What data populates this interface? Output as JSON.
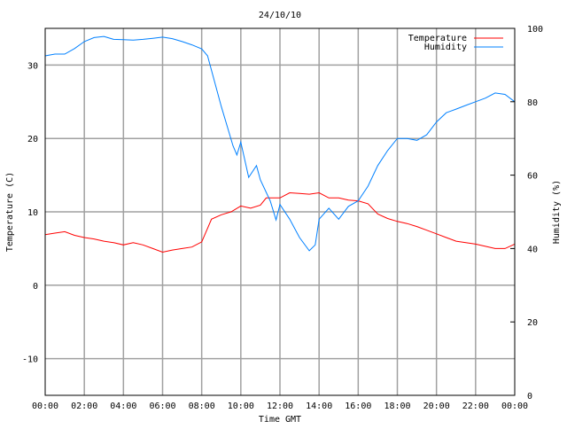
{
  "chart_data": {
    "type": "line",
    "title": "24/10/10",
    "xlabel": "Time GMT",
    "ylabel": "Temperature (C)",
    "y2label": "Humidity (%)",
    "xlim": [
      0,
      24
    ],
    "ylim": [
      -15,
      35
    ],
    "y2lim": [
      0,
      100
    ],
    "grid": true,
    "legend_position": "top-right",
    "x_ticks": [
      0,
      2,
      4,
      6,
      8,
      10,
      12,
      14,
      16,
      18,
      20,
      22,
      24
    ],
    "x_tick_labels": [
      "00:00",
      "02:00",
      "04:00",
      "06:00",
      "08:00",
      "10:00",
      "12:00",
      "14:00",
      "16:00",
      "18:00",
      "20:00",
      "22:00",
      "00:00"
    ],
    "y_ticks": [
      -10,
      0,
      10,
      20,
      30
    ],
    "y_tick_labels": [
      "-10",
      "0",
      "10",
      "20",
      "30"
    ],
    "y2_ticks": [
      0,
      20,
      40,
      60,
      80,
      100
    ],
    "y2_tick_labels": [
      "0",
      "20",
      "40",
      "60",
      "80",
      "100"
    ],
    "series": [
      {
        "name": "Temperature",
        "axis": "y",
        "color": "#ff0000",
        "x": [
          0,
          0.5,
          1,
          1.5,
          2,
          2.5,
          3,
          3.5,
          4,
          4.5,
          5,
          5.5,
          6,
          6.5,
          7,
          7.5,
          8,
          8.5,
          9,
          9.5,
          10,
          10.5,
          11,
          11.3,
          12,
          12.5,
          13,
          13.5,
          14,
          14.5,
          15,
          15.5,
          16,
          16.5,
          17,
          17.5,
          18,
          18.5,
          19,
          19.5,
          20,
          20.5,
          21,
          21.5,
          22,
          22.5,
          23,
          23.5,
          24
        ],
        "values": [
          6.9,
          7.1,
          7.3,
          6.8,
          6.5,
          6.3,
          6.0,
          5.8,
          5.5,
          5.8,
          5.5,
          5.0,
          4.5,
          4.8,
          5.0,
          5.2,
          5.9,
          9.0,
          9.6,
          10.0,
          10.8,
          10.5,
          10.9,
          11.9,
          11.9,
          12.6,
          12.5,
          12.4,
          12.6,
          11.9,
          11.9,
          11.6,
          11.5,
          11.1,
          9.7,
          9.1,
          8.7,
          8.4,
          8.0,
          7.5,
          7.0,
          6.5,
          6.0,
          5.8,
          5.6,
          5.3,
          5.0,
          5.0,
          5.6
        ]
      },
      {
        "name": "Humidity",
        "axis": "y2",
        "color": "#0080ff",
        "x": [
          0,
          0.5,
          1,
          1.5,
          2,
          2.5,
          3,
          3.5,
          4,
          4.5,
          5,
          5.5,
          6,
          6.5,
          7,
          7.5,
          8,
          8.3,
          9,
          9.6,
          9.8,
          10,
          10.4,
          10.8,
          11,
          11.5,
          11.8,
          12,
          12.5,
          13,
          13.5,
          13.8,
          14,
          14.5,
          15,
          15.5,
          16,
          16.5,
          17,
          17.5,
          18,
          18.5,
          19,
          19.5,
          20,
          20.5,
          21,
          21.5,
          22,
          22.5,
          23,
          23.5,
          24
        ],
        "values": [
          92.5,
          93,
          93,
          94.5,
          96.4,
          97.5,
          97.8,
          97,
          96.9,
          96.8,
          97,
          97.3,
          97.6,
          97.2,
          96.4,
          95.5,
          94.4,
          92.5,
          78.7,
          68,
          65.5,
          69,
          59.4,
          62.6,
          58.7,
          53,
          47.8,
          52,
          48,
          43,
          39.4,
          41,
          48,
          51,
          48,
          51.5,
          53,
          57,
          62.6,
          66.7,
          70,
          70,
          69.5,
          71,
          74.5,
          77,
          78,
          79,
          80,
          81,
          82.4,
          82,
          80
        ]
      }
    ]
  }
}
